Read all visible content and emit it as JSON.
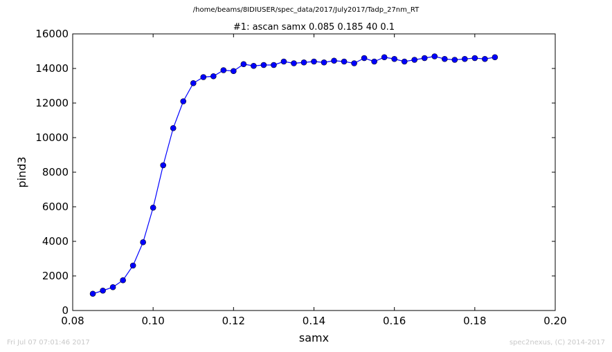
{
  "figure": {
    "suptitle": "/home/beams/8IDIUSER/spec_data/2017/July2017/Tadp_27nm_RT",
    "footer_left": "Fri Jul 07 07:01:46 2017",
    "footer_right": "spec2nexus, (C) 2014-2017"
  },
  "chart_data": {
    "type": "line",
    "title": "#1: ascan  samx 0.085 0.185  40 0.1",
    "xlabel": "samx",
    "ylabel": "pind3",
    "xlim": [
      0.08,
      0.2
    ],
    "ylim": [
      0,
      16000
    ],
    "xticks": [
      "0.08",
      "0.10",
      "0.12",
      "0.14",
      "0.16",
      "0.18",
      "0.20"
    ],
    "yticks": [
      "0",
      "2000",
      "4000",
      "6000",
      "8000",
      "10000",
      "12000",
      "14000",
      "16000"
    ],
    "grid": false,
    "marker": "o",
    "line_color": "#0000ff",
    "series": [
      {
        "x": [
          0.085,
          0.0875,
          0.09,
          0.0925,
          0.095,
          0.0975,
          0.1,
          0.1025,
          0.105,
          0.1075,
          0.11,
          0.1125,
          0.115,
          0.1175,
          0.12,
          0.1225,
          0.125,
          0.1275,
          0.13,
          0.1325,
          0.135,
          0.1375,
          0.14,
          0.1425,
          0.145,
          0.1475,
          0.15,
          0.1525,
          0.155,
          0.1575,
          0.16,
          0.1625,
          0.165,
          0.1675,
          0.17,
          0.1725,
          0.175,
          0.1775,
          0.18,
          0.1825,
          0.185
        ],
        "y": [
          970,
          1150,
          1350,
          1750,
          2600,
          3950,
          5950,
          8400,
          10550,
          12100,
          13150,
          13500,
          13550,
          13900,
          13850,
          14250,
          14150,
          14200,
          14200,
          14400,
          14300,
          14350,
          14400,
          14350,
          14450,
          14400,
          14300,
          14600,
          14400,
          14650,
          14550,
          14400,
          14500,
          14600,
          14700,
          14550,
          14500,
          14550,
          14600,
          14550,
          14650
        ]
      }
    ]
  }
}
